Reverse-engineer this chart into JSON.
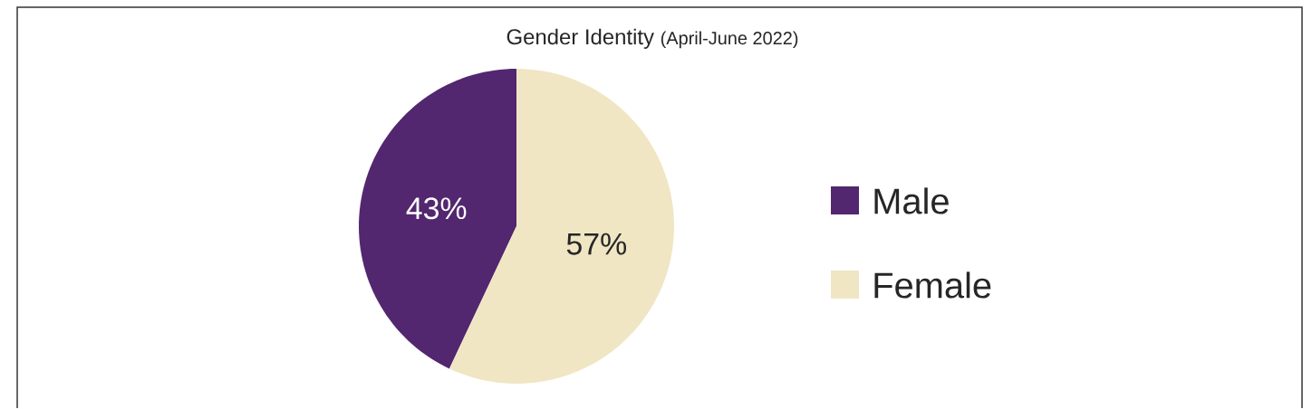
{
  "chart_data": {
    "type": "pie",
    "title": "Gender Identity",
    "subtitle": "(April-June 2022)",
    "categories": [
      "Male",
      "Female"
    ],
    "values": [
      43,
      57
    ],
    "colors": [
      "#52276f",
      "#f0e6c4"
    ],
    "value_labels": [
      "43%",
      "57%"
    ],
    "legend": "right"
  }
}
